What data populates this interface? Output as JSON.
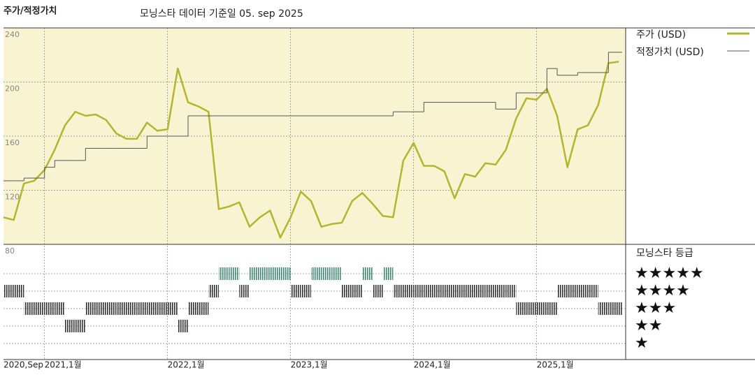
{
  "chart_data": [
    {
      "type": "line",
      "title": "주가/적정가치",
      "subtitle": "모닝스타 데이터 기준일 05. sep 2025",
      "x": [
        "2020-09",
        "2020-10",
        "2020-11",
        "2020-12",
        "2021-01",
        "2021-02",
        "2021-03",
        "2021-04",
        "2021-05",
        "2021-06",
        "2021-07",
        "2021-08",
        "2021-09",
        "2021-10",
        "2021-11",
        "2021-12",
        "2022-01",
        "2022-02",
        "2022-03",
        "2022-04",
        "2022-05",
        "2022-06",
        "2022-07",
        "2022-08",
        "2022-09",
        "2022-10",
        "2022-11",
        "2022-12",
        "2023-01",
        "2023-02",
        "2023-03",
        "2023-04",
        "2023-05",
        "2023-06",
        "2023-07",
        "2023-08",
        "2023-09",
        "2023-10",
        "2023-11",
        "2023-12",
        "2024-01",
        "2024-02",
        "2024-03",
        "2024-04",
        "2024-05",
        "2024-06",
        "2024-07",
        "2024-08",
        "2024-09",
        "2024-10",
        "2024-11",
        "2024-12",
        "2025-01",
        "2025-02",
        "2025-03",
        "2025-04",
        "2025-05",
        "2025-06",
        "2025-07",
        "2025-08",
        "2025-09"
      ],
      "xlim": [
        "2020-09",
        "2025-09"
      ],
      "xticks": [
        {
          "value": "2020-09",
          "label": "2020,Sep"
        },
        {
          "value": "2021-01",
          "label": "2021,1월"
        },
        {
          "value": "2022-01",
          "label": "2022,1월"
        },
        {
          "value": "2023-01",
          "label": "2023,1월"
        },
        {
          "value": "2024-01",
          "label": "2024,1월"
        },
        {
          "value": "2025-01",
          "label": "2025,1월"
        }
      ],
      "ylim": [
        80,
        240
      ],
      "yticks": [
        80,
        120,
        160,
        200,
        240
      ],
      "grid": true,
      "background": "#f8f4d2",
      "series": [
        {
          "name": "주가 (USD)",
          "color": "#b3b52e",
          "values": [
            100,
            98,
            125,
            127,
            135,
            150,
            168,
            178,
            175,
            176,
            172,
            162,
            158,
            158,
            170,
            164,
            165,
            210,
            185,
            182,
            178,
            106,
            108,
            111,
            93,
            100,
            105,
            85,
            100,
            119,
            112,
            93,
            95,
            96,
            112,
            118,
            110,
            101,
            100,
            142,
            155,
            138,
            138,
            134,
            114,
            132,
            130,
            140,
            139,
            150,
            173,
            188,
            187,
            195,
            175,
            137,
            165,
            168,
            183,
            214,
            215
          ]
        },
        {
          "name": "적정가치 (USD)",
          "color": "#555555",
          "step": true,
          "values": [
            127,
            127,
            129,
            129,
            137,
            142,
            142,
            142,
            151,
            151,
            151,
            151,
            151,
            151,
            160,
            160,
            160,
            160,
            175,
            175,
            175,
            175,
            175,
            175,
            175,
            175,
            175,
            175,
            175,
            175,
            175,
            175,
            175,
            175,
            175,
            175,
            175,
            175,
            178,
            178,
            178,
            185,
            185,
            185,
            185,
            185,
            185,
            185,
            180,
            180,
            192,
            192,
            192,
            210,
            205,
            205,
            207,
            207,
            207,
            222,
            222
          ]
        }
      ]
    },
    {
      "type": "rating",
      "title": "모닝스타 등급",
      "levels": [
        5,
        4,
        3,
        2,
        1
      ],
      "level_labels": [
        "★★★★★",
        "★★★★",
        "★★★",
        "★★",
        "★"
      ],
      "color": "#333333",
      "top_color": "#3d8a70",
      "values": [
        4,
        4,
        3,
        3,
        3,
        3,
        2,
        2,
        3,
        3,
        3,
        3,
        3,
        3,
        3,
        3,
        3,
        2,
        3,
        3,
        4,
        5,
        5,
        4,
        5,
        5,
        5,
        5,
        4,
        4,
        5,
        5,
        5,
        4,
        4,
        5,
        4,
        5,
        4,
        4,
        4,
        4,
        4,
        4,
        4,
        4,
        4,
        4,
        4,
        4,
        3,
        3,
        3,
        3,
        4,
        4,
        4,
        4,
        3,
        3,
        3
      ]
    }
  ]
}
